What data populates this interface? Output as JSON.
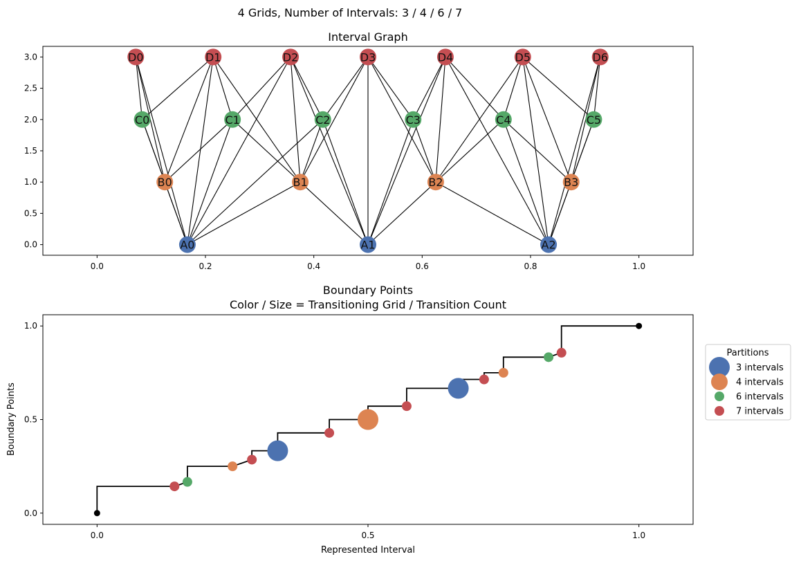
{
  "suptitle": "4 Grids, Number of Intervals: 3 / 4 / 6 / 7",
  "colors": {
    "A": "#4c72b0",
    "B": "#dd8452",
    "C": "#55a868",
    "D": "#c44e52",
    "endpoint": "#000000"
  },
  "chart_data": [
    {
      "type": "network",
      "title": "Interval Graph",
      "xlim": [
        -0.1,
        1.1
      ],
      "ylim": [
        -0.17,
        3.17
      ],
      "xticks": [
        0.0,
        0.2,
        0.4,
        0.6,
        0.8,
        1.0
      ],
      "xtick_labels": [
        "0.0",
        "0.2",
        "0.4",
        "0.6",
        "0.8",
        "1.0"
      ],
      "yticks": [
        0.0,
        0.5,
        1.0,
        1.5,
        2.0,
        2.5,
        3.0
      ],
      "ytick_labels": [
        "0.0",
        "0.5",
        "1.0",
        "1.5",
        "2.0",
        "2.5",
        "3.0"
      ],
      "nodes": [
        {
          "id": "A0",
          "x": 0.1667,
          "y": 0,
          "group": "A"
        },
        {
          "id": "A1",
          "x": 0.5,
          "y": 0,
          "group": "A"
        },
        {
          "id": "A2",
          "x": 0.8333,
          "y": 0,
          "group": "A"
        },
        {
          "id": "B0",
          "x": 0.125,
          "y": 1,
          "group": "B"
        },
        {
          "id": "B1",
          "x": 0.375,
          "y": 1,
          "group": "B"
        },
        {
          "id": "B2",
          "x": 0.625,
          "y": 1,
          "group": "B"
        },
        {
          "id": "B3",
          "x": 0.875,
          "y": 1,
          "group": "B"
        },
        {
          "id": "C0",
          "x": 0.0833,
          "y": 2,
          "group": "C"
        },
        {
          "id": "C1",
          "x": 0.25,
          "y": 2,
          "group": "C"
        },
        {
          "id": "C2",
          "x": 0.4167,
          "y": 2,
          "group": "C"
        },
        {
          "id": "C3",
          "x": 0.5833,
          "y": 2,
          "group": "C"
        },
        {
          "id": "C4",
          "x": 0.75,
          "y": 2,
          "group": "C"
        },
        {
          "id": "C5",
          "x": 0.9167,
          "y": 2,
          "group": "C"
        },
        {
          "id": "D0",
          "x": 0.0714,
          "y": 3,
          "group": "D"
        },
        {
          "id": "D1",
          "x": 0.2143,
          "y": 3,
          "group": "D"
        },
        {
          "id": "D2",
          "x": 0.3571,
          "y": 3,
          "group": "D"
        },
        {
          "id": "D3",
          "x": 0.5,
          "y": 3,
          "group": "D"
        },
        {
          "id": "D4",
          "x": 0.6429,
          "y": 3,
          "group": "D"
        },
        {
          "id": "D5",
          "x": 0.7857,
          "y": 3,
          "group": "D"
        },
        {
          "id": "D6",
          "x": 0.9286,
          "y": 3,
          "group": "D"
        }
      ],
      "edges": [
        [
          "A0",
          "B0"
        ],
        [
          "A0",
          "B1"
        ],
        [
          "A0",
          "C0"
        ],
        [
          "A0",
          "C1"
        ],
        [
          "A0",
          "C2"
        ],
        [
          "A0",
          "D0"
        ],
        [
          "A0",
          "D1"
        ],
        [
          "A0",
          "D2"
        ],
        [
          "A1",
          "B1"
        ],
        [
          "A1",
          "B2"
        ],
        [
          "A1",
          "C2"
        ],
        [
          "A1",
          "C3"
        ],
        [
          "A1",
          "D2"
        ],
        [
          "A1",
          "D3"
        ],
        [
          "A1",
          "D4"
        ],
        [
          "A2",
          "B2"
        ],
        [
          "A2",
          "B3"
        ],
        [
          "A2",
          "C4"
        ],
        [
          "A2",
          "C5"
        ],
        [
          "A2",
          "D4"
        ],
        [
          "A2",
          "D5"
        ],
        [
          "A2",
          "D6"
        ],
        [
          "B0",
          "C0"
        ],
        [
          "B0",
          "C1"
        ],
        [
          "B0",
          "D0"
        ],
        [
          "B0",
          "D1"
        ],
        [
          "B1",
          "C1"
        ],
        [
          "B1",
          "C2"
        ],
        [
          "B1",
          "D1"
        ],
        [
          "B1",
          "D2"
        ],
        [
          "B1",
          "D3"
        ],
        [
          "B2",
          "C3"
        ],
        [
          "B2",
          "C4"
        ],
        [
          "B2",
          "D3"
        ],
        [
          "B2",
          "D4"
        ],
        [
          "B2",
          "D5"
        ],
        [
          "B3",
          "C4"
        ],
        [
          "B3",
          "C5"
        ],
        [
          "B3",
          "D5"
        ],
        [
          "B3",
          "D6"
        ],
        [
          "C0",
          "D0"
        ],
        [
          "C0",
          "D1"
        ],
        [
          "C1",
          "D1"
        ],
        [
          "C1",
          "D2"
        ],
        [
          "C2",
          "D2"
        ],
        [
          "C2",
          "D3"
        ],
        [
          "C3",
          "D3"
        ],
        [
          "C3",
          "D4"
        ],
        [
          "C4",
          "D4"
        ],
        [
          "C4",
          "D5"
        ],
        [
          "C5",
          "D5"
        ],
        [
          "C5",
          "D6"
        ]
      ]
    },
    {
      "type": "scatter",
      "title": "Boundary Points",
      "subtitle": "Color / Size = Transitioning Grid / Transition Count",
      "xlabel": "Represented Interval",
      "ylabel": "Boundary Points",
      "xlim": [
        -0.1,
        1.1
      ],
      "ylim": [
        -0.06,
        1.06
      ],
      "xticks": [
        0.0,
        0.5,
        1.0
      ],
      "xtick_labels": [
        "0.0",
        "0.5",
        "1.0"
      ],
      "yticks": [
        0.0,
        0.5,
        1.0
      ],
      "ytick_labels": [
        "0.0",
        "0.5",
        "1.0"
      ],
      "step_line": [
        [
          0,
          0
        ],
        [
          0,
          0.1429
        ],
        [
          0.1429,
          0.1429
        ],
        [
          0.1667,
          0.1667
        ],
        [
          0.1667,
          0.25
        ],
        [
          0.25,
          0.25
        ],
        [
          0.2857,
          0.2857
        ],
        [
          0.2857,
          0.3333
        ],
        [
          0.3333,
          0.3333
        ],
        [
          0.3333,
          0.4286
        ],
        [
          0.4286,
          0.4286
        ],
        [
          0.4286,
          0.5
        ],
        [
          0.5,
          0.5
        ],
        [
          0.5,
          0.5714
        ],
        [
          0.5714,
          0.5714
        ],
        [
          0.5714,
          0.6667
        ],
        [
          0.6667,
          0.6667
        ],
        [
          0.6667,
          0.7143
        ],
        [
          0.7143,
          0.7143
        ],
        [
          0.7143,
          0.75
        ],
        [
          0.75,
          0.75
        ],
        [
          0.75,
          0.8333
        ],
        [
          0.8333,
          0.8333
        ],
        [
          0.8571,
          0.8571
        ],
        [
          0.8571,
          1.0
        ],
        [
          1.0,
          1.0
        ]
      ],
      "endpoints": [
        [
          0,
          0
        ],
        [
          1,
          1
        ]
      ],
      "points": [
        {
          "x": 0.1429,
          "y": 0.1429,
          "group": "D",
          "size": 1
        },
        {
          "x": 0.1667,
          "y": 0.1667,
          "group": "C",
          "size": 1
        },
        {
          "x": 0.25,
          "y": 0.25,
          "group": "B",
          "size": 1
        },
        {
          "x": 0.2857,
          "y": 0.2857,
          "group": "D",
          "size": 1
        },
        {
          "x": 0.3333,
          "y": 0.3333,
          "group": "A",
          "size": 3
        },
        {
          "x": 0.4286,
          "y": 0.4286,
          "group": "D",
          "size": 1
        },
        {
          "x": 0.5,
          "y": 0.5,
          "group": "B",
          "size": 3
        },
        {
          "x": 0.5714,
          "y": 0.5714,
          "group": "D",
          "size": 1
        },
        {
          "x": 0.6667,
          "y": 0.6667,
          "group": "A",
          "size": 3
        },
        {
          "x": 0.7143,
          "y": 0.7143,
          "group": "D",
          "size": 1
        },
        {
          "x": 0.75,
          "y": 0.75,
          "group": "B",
          "size": 1
        },
        {
          "x": 0.8333,
          "y": 0.8333,
          "group": "C",
          "size": 1
        },
        {
          "x": 0.8571,
          "y": 0.8571,
          "group": "D",
          "size": 1
        }
      ],
      "legend": {
        "title": "Partitions",
        "placement": "right",
        "entries": [
          {
            "label": "3 intervals",
            "group": "A",
            "size": 3
          },
          {
            "label": "4 intervals",
            "group": "B",
            "size": 2
          },
          {
            "label": "6 intervals",
            "group": "C",
            "size": 1
          },
          {
            "label": "7 intervals",
            "group": "D",
            "size": 1
          }
        ]
      }
    }
  ]
}
